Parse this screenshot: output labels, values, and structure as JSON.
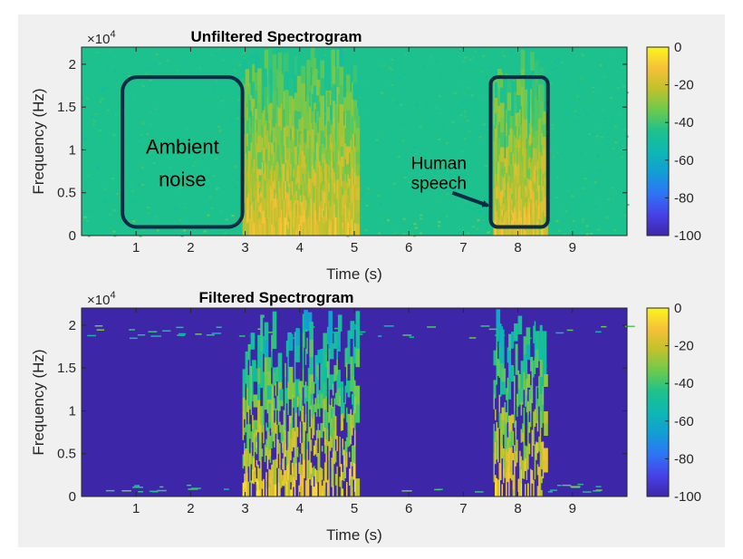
{
  "colors": {
    "figure_bg": "#f0f0f0",
    "annotation_box": "#0d2b44",
    "colormap": [
      "#3e26a8",
      "#4741e6",
      "#2d74f6",
      "#139dd5",
      "#0eb7b4",
      "#1ec18c",
      "#6cc94e",
      "#c1c12c",
      "#f7c038",
      "#faf520"
    ]
  },
  "chart_data": [
    {
      "type": "heatmap",
      "title": "Unfiltered Spectrogram",
      "xlabel": "Time (s)",
      "ylabel": "Frequency (Hz)",
      "y_multiplier": "×10",
      "y_multiplier_exp": "4",
      "xlim": [
        0,
        10
      ],
      "ylim": [
        0,
        22000
      ],
      "x_ticks": [
        "1",
        "2",
        "3",
        "4",
        "5",
        "6",
        "7",
        "8",
        "9"
      ],
      "y_ticks": [
        "0",
        "0.5",
        "1",
        "1.5",
        "2"
      ],
      "colorbar": {
        "range": [
          -100,
          0
        ],
        "ticks": [
          "0",
          "-20",
          "-40",
          "-60",
          "-80",
          "-100"
        ]
      },
      "background_level_db": -45,
      "speech_regions": [
        {
          "start_s": 2.95,
          "end_s": 5.05
        },
        {
          "start_s": 7.55,
          "end_s": 8.5
        }
      ],
      "annotations": [
        {
          "text_lines": [
            "Ambient",
            "noise"
          ],
          "box_x": [
            0.75,
            2.95
          ],
          "box_y": [
            1000,
            18500
          ]
        },
        {
          "text_lines": [
            "Human",
            "speech"
          ],
          "box_x": [
            7.5,
            8.55
          ],
          "box_y": [
            1000,
            18500
          ],
          "arrow_to": [
            7.45,
            3500
          ]
        }
      ]
    },
    {
      "type": "heatmap",
      "title": "Filtered Spectrogram",
      "xlabel": "Time (s)",
      "ylabel": "Frequency (Hz)",
      "y_multiplier": "×10",
      "y_multiplier_exp": "4",
      "xlim": [
        0,
        10
      ],
      "ylim": [
        0,
        22000
      ],
      "x_ticks": [
        "1",
        "2",
        "3",
        "4",
        "5",
        "6",
        "7",
        "8",
        "9"
      ],
      "y_ticks": [
        "0",
        "0.5",
        "1",
        "1.5",
        "2"
      ],
      "colorbar": {
        "range": [
          -100,
          0
        ],
        "ticks": [
          "0",
          "-20",
          "-40",
          "-60",
          "-80",
          "-100"
        ]
      },
      "background_level_db": -100,
      "speech_regions": [
        {
          "start_s": 2.95,
          "end_s": 5.05
        },
        {
          "start_s": 7.55,
          "end_s": 8.5
        }
      ]
    }
  ]
}
